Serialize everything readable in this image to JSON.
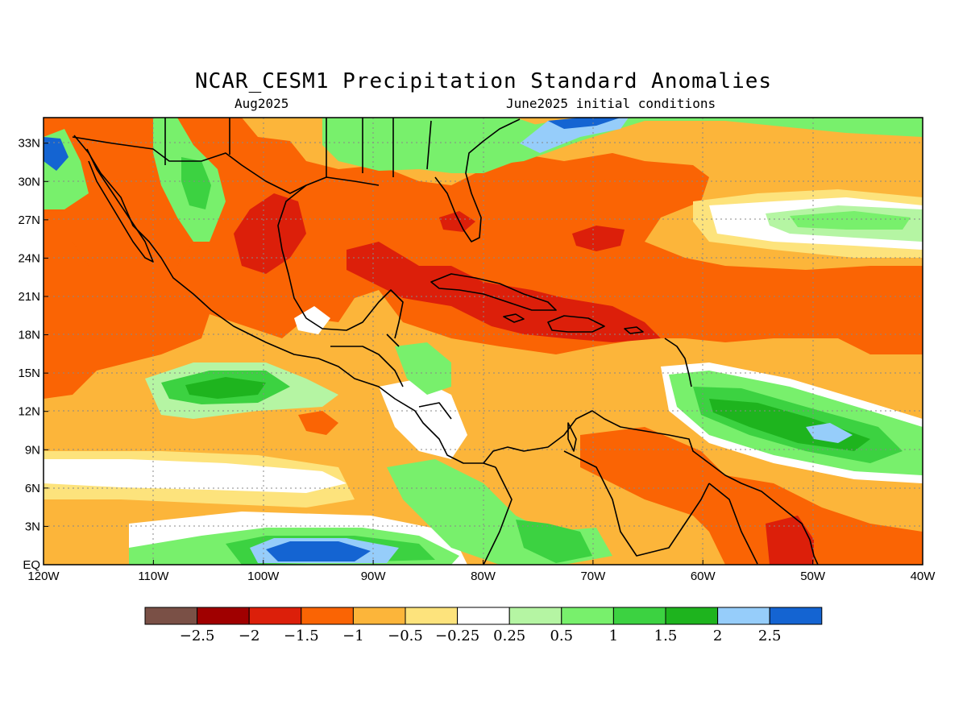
{
  "title": "NCAR_CESM1 Precipitation Standard Anomalies",
  "subtitle_left": "Aug2025",
  "subtitle_right": "June2025 initial conditions",
  "map": {
    "lon_range": [
      -120,
      -40
    ],
    "lat_range": [
      0,
      35
    ],
    "lon_ticks": [
      {
        "value": -120,
        "label": "120W"
      },
      {
        "value": -110,
        "label": "110W"
      },
      {
        "value": -100,
        "label": "100W"
      },
      {
        "value": -90,
        "label": "90W"
      },
      {
        "value": -80,
        "label": "80W"
      },
      {
        "value": -70,
        "label": "70W"
      },
      {
        "value": -60,
        "label": "60W"
      },
      {
        "value": -50,
        "label": "50W"
      },
      {
        "value": -40,
        "label": "40W"
      }
    ],
    "lat_ticks": [
      {
        "value": 0,
        "label": "EQ"
      },
      {
        "value": 3,
        "label": "3N"
      },
      {
        "value": 6,
        "label": "6N"
      },
      {
        "value": 9,
        "label": "9N"
      },
      {
        "value": 12,
        "label": "12N"
      },
      {
        "value": 15,
        "label": "15N"
      },
      {
        "value": 18,
        "label": "18N"
      },
      {
        "value": 21,
        "label": "21N"
      },
      {
        "value": 24,
        "label": "24N"
      },
      {
        "value": 27,
        "label": "27N"
      },
      {
        "value": 30,
        "label": "30N"
      },
      {
        "value": 33,
        "label": "33N"
      }
    ]
  },
  "colorbar": {
    "colors": [
      "#7a5046",
      "#a00000",
      "#dc1f0a",
      "#fa6404",
      "#fcb53a",
      "#fde37c",
      "#ffffff",
      "#b5f5a3",
      "#78f06c",
      "#3cd241",
      "#1eb41e",
      "#96cdfa",
      "#1464d2"
    ],
    "labels": [
      "-2.5",
      "-2",
      "-1.5",
      "-1",
      "-0.5",
      "-0.25",
      "0.25",
      "0.5",
      "1",
      "1.5",
      "2",
      "2.5"
    ]
  },
  "colors": {
    "background_anomaly": "#fcb53a",
    "coast": "#000000"
  }
}
